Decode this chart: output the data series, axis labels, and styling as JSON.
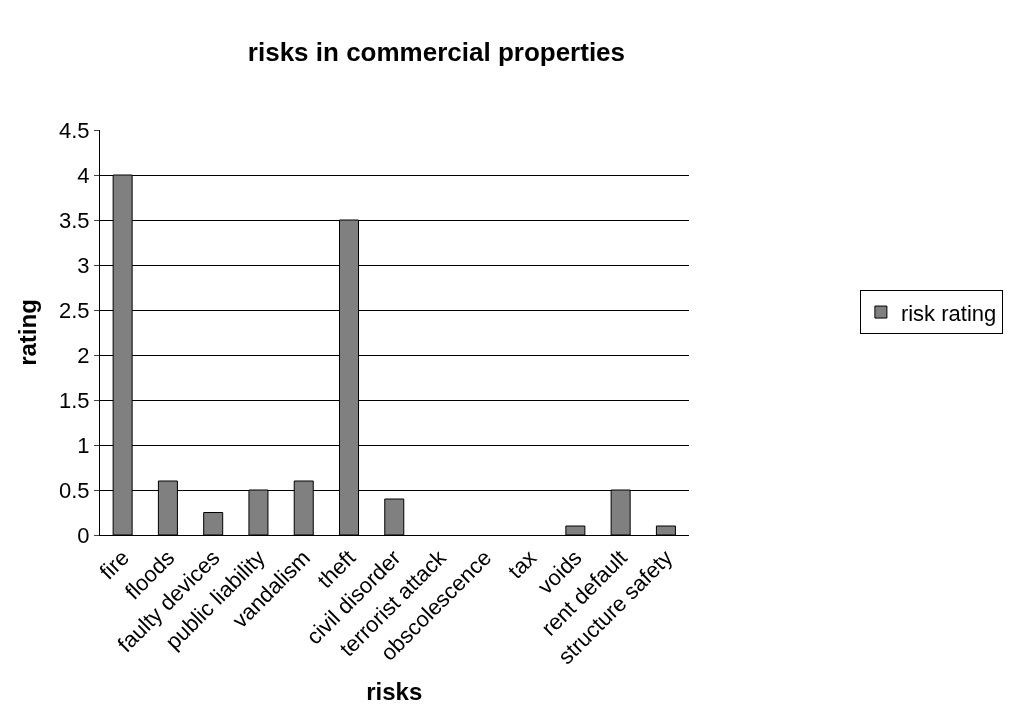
{
  "chart_data": {
    "type": "bar",
    "title": "risks in commercial properties",
    "xlabel": "risks",
    "ylabel": "rating",
    "categories": [
      "fire",
      "floods",
      "faulty devices",
      "public liability",
      "vandalism",
      "theft",
      "civil disorder",
      "terrorist attack",
      "obscolescence",
      "tax",
      "voids",
      "rent default",
      "structure safety"
    ],
    "series": [
      {
        "name": "risk rating",
        "color": "#808080",
        "values": [
          4,
          0.6,
          0.25,
          0.5,
          0.6,
          3.5,
          0.4,
          0,
          0,
          0,
          0.1,
          0.5,
          0.1
        ]
      }
    ],
    "ylim": [
      0,
      4.5
    ],
    "yticks": [
      0,
      0.5,
      1,
      1.5,
      2,
      2.5,
      3,
      3.5,
      4,
      4.5
    ],
    "grid": "y",
    "legend": "right"
  }
}
